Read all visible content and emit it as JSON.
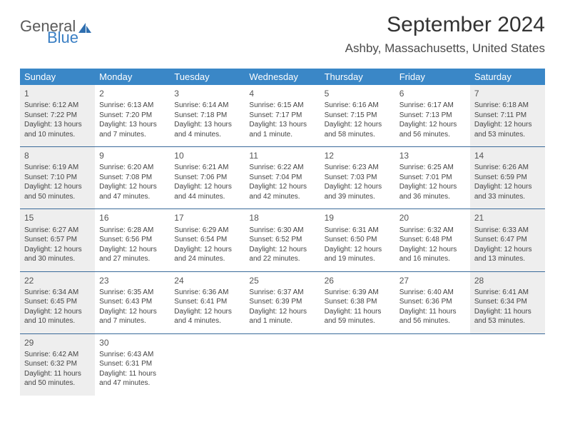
{
  "brand": {
    "word1": "General",
    "word2": "Blue",
    "color_gray": "#5a5a5a",
    "color_blue": "#3a7fc4"
  },
  "title": "September 2024",
  "location": "Ashby, Massachusetts, United States",
  "header_bg": "#3a87c7",
  "header_fg": "#ffffff",
  "row_divider": "#3a6a9a",
  "shaded_bg": "#eeeeee",
  "text_color": "#444444",
  "day_names": [
    "Sunday",
    "Monday",
    "Tuesday",
    "Wednesday",
    "Thursday",
    "Friday",
    "Saturday"
  ],
  "weeks": [
    [
      {
        "n": "1",
        "shaded": true,
        "sunrise": "Sunrise: 6:12 AM",
        "sunset": "Sunset: 7:22 PM",
        "daylight": "Daylight: 13 hours and 10 minutes."
      },
      {
        "n": "2",
        "sunrise": "Sunrise: 6:13 AM",
        "sunset": "Sunset: 7:20 PM",
        "daylight": "Daylight: 13 hours and 7 minutes."
      },
      {
        "n": "3",
        "sunrise": "Sunrise: 6:14 AM",
        "sunset": "Sunset: 7:18 PM",
        "daylight": "Daylight: 13 hours and 4 minutes."
      },
      {
        "n": "4",
        "sunrise": "Sunrise: 6:15 AM",
        "sunset": "Sunset: 7:17 PM",
        "daylight": "Daylight: 13 hours and 1 minute."
      },
      {
        "n": "5",
        "sunrise": "Sunrise: 6:16 AM",
        "sunset": "Sunset: 7:15 PM",
        "daylight": "Daylight: 12 hours and 58 minutes."
      },
      {
        "n": "6",
        "sunrise": "Sunrise: 6:17 AM",
        "sunset": "Sunset: 7:13 PM",
        "daylight": "Daylight: 12 hours and 56 minutes."
      },
      {
        "n": "7",
        "shaded": true,
        "sunrise": "Sunrise: 6:18 AM",
        "sunset": "Sunset: 7:11 PM",
        "daylight": "Daylight: 12 hours and 53 minutes."
      }
    ],
    [
      {
        "n": "8",
        "shaded": true,
        "sunrise": "Sunrise: 6:19 AM",
        "sunset": "Sunset: 7:10 PM",
        "daylight": "Daylight: 12 hours and 50 minutes."
      },
      {
        "n": "9",
        "sunrise": "Sunrise: 6:20 AM",
        "sunset": "Sunset: 7:08 PM",
        "daylight": "Daylight: 12 hours and 47 minutes."
      },
      {
        "n": "10",
        "sunrise": "Sunrise: 6:21 AM",
        "sunset": "Sunset: 7:06 PM",
        "daylight": "Daylight: 12 hours and 44 minutes."
      },
      {
        "n": "11",
        "sunrise": "Sunrise: 6:22 AM",
        "sunset": "Sunset: 7:04 PM",
        "daylight": "Daylight: 12 hours and 42 minutes."
      },
      {
        "n": "12",
        "sunrise": "Sunrise: 6:23 AM",
        "sunset": "Sunset: 7:03 PM",
        "daylight": "Daylight: 12 hours and 39 minutes."
      },
      {
        "n": "13",
        "sunrise": "Sunrise: 6:25 AM",
        "sunset": "Sunset: 7:01 PM",
        "daylight": "Daylight: 12 hours and 36 minutes."
      },
      {
        "n": "14",
        "shaded": true,
        "sunrise": "Sunrise: 6:26 AM",
        "sunset": "Sunset: 6:59 PM",
        "daylight": "Daylight: 12 hours and 33 minutes."
      }
    ],
    [
      {
        "n": "15",
        "shaded": true,
        "sunrise": "Sunrise: 6:27 AM",
        "sunset": "Sunset: 6:57 PM",
        "daylight": "Daylight: 12 hours and 30 minutes."
      },
      {
        "n": "16",
        "sunrise": "Sunrise: 6:28 AM",
        "sunset": "Sunset: 6:56 PM",
        "daylight": "Daylight: 12 hours and 27 minutes."
      },
      {
        "n": "17",
        "sunrise": "Sunrise: 6:29 AM",
        "sunset": "Sunset: 6:54 PM",
        "daylight": "Daylight: 12 hours and 24 minutes."
      },
      {
        "n": "18",
        "sunrise": "Sunrise: 6:30 AM",
        "sunset": "Sunset: 6:52 PM",
        "daylight": "Daylight: 12 hours and 22 minutes."
      },
      {
        "n": "19",
        "sunrise": "Sunrise: 6:31 AM",
        "sunset": "Sunset: 6:50 PM",
        "daylight": "Daylight: 12 hours and 19 minutes."
      },
      {
        "n": "20",
        "sunrise": "Sunrise: 6:32 AM",
        "sunset": "Sunset: 6:48 PM",
        "daylight": "Daylight: 12 hours and 16 minutes."
      },
      {
        "n": "21",
        "shaded": true,
        "sunrise": "Sunrise: 6:33 AM",
        "sunset": "Sunset: 6:47 PM",
        "daylight": "Daylight: 12 hours and 13 minutes."
      }
    ],
    [
      {
        "n": "22",
        "shaded": true,
        "sunrise": "Sunrise: 6:34 AM",
        "sunset": "Sunset: 6:45 PM",
        "daylight": "Daylight: 12 hours and 10 minutes."
      },
      {
        "n": "23",
        "sunrise": "Sunrise: 6:35 AM",
        "sunset": "Sunset: 6:43 PM",
        "daylight": "Daylight: 12 hours and 7 minutes."
      },
      {
        "n": "24",
        "sunrise": "Sunrise: 6:36 AM",
        "sunset": "Sunset: 6:41 PM",
        "daylight": "Daylight: 12 hours and 4 minutes."
      },
      {
        "n": "25",
        "sunrise": "Sunrise: 6:37 AM",
        "sunset": "Sunset: 6:39 PM",
        "daylight": "Daylight: 12 hours and 1 minute."
      },
      {
        "n": "26",
        "sunrise": "Sunrise: 6:39 AM",
        "sunset": "Sunset: 6:38 PM",
        "daylight": "Daylight: 11 hours and 59 minutes."
      },
      {
        "n": "27",
        "sunrise": "Sunrise: 6:40 AM",
        "sunset": "Sunset: 6:36 PM",
        "daylight": "Daylight: 11 hours and 56 minutes."
      },
      {
        "n": "28",
        "shaded": true,
        "sunrise": "Sunrise: 6:41 AM",
        "sunset": "Sunset: 6:34 PM",
        "daylight": "Daylight: 11 hours and 53 minutes."
      }
    ],
    [
      {
        "n": "29",
        "shaded": true,
        "sunrise": "Sunrise: 6:42 AM",
        "sunset": "Sunset: 6:32 PM",
        "daylight": "Daylight: 11 hours and 50 minutes."
      },
      {
        "n": "30",
        "sunrise": "Sunrise: 6:43 AM",
        "sunset": "Sunset: 6:31 PM",
        "daylight": "Daylight: 11 hours and 47 minutes."
      },
      {
        "empty": true
      },
      {
        "empty": true
      },
      {
        "empty": true
      },
      {
        "empty": true
      },
      {
        "empty": true
      }
    ]
  ]
}
